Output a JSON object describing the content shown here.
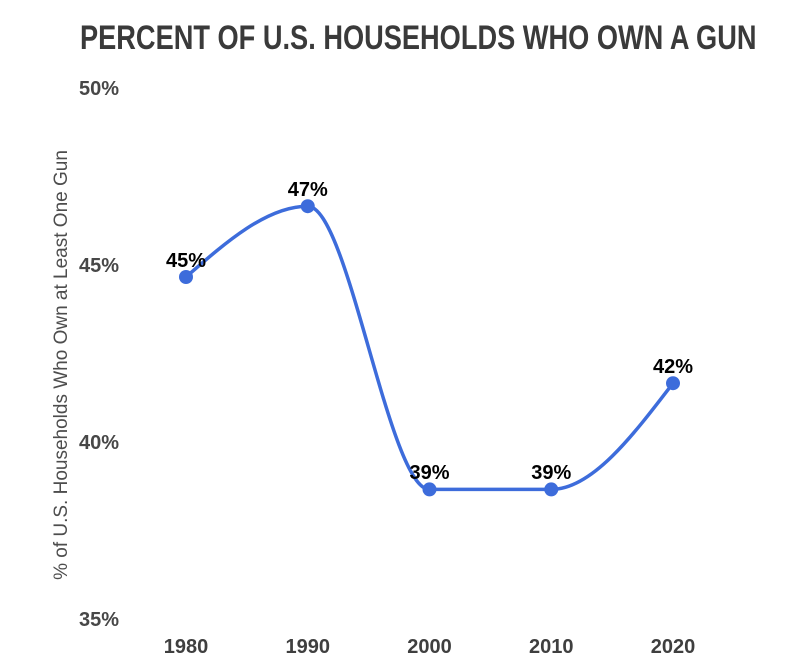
{
  "chart_data": {
    "type": "line",
    "title": "PERCENT OF U.S. HOUSEHOLDS WHO OWN A GUN",
    "xlabel": "",
    "ylabel": "% of U.S. Households Who Own at Least One Gun",
    "x": [
      1980,
      1990,
      2000,
      2010,
      2020
    ],
    "values": [
      45,
      47,
      39,
      39,
      42
    ],
    "point_labels": [
      "45%",
      "47%",
      "39%",
      "39%",
      "42%"
    ],
    "xtick_labels": [
      "1980",
      "1990",
      "2000",
      "2010",
      "2020"
    ],
    "ytick_values": [
      50,
      45,
      40,
      35
    ],
    "ytick_labels": [
      "50%",
      "45%",
      "40%",
      "35%"
    ],
    "ylim": [
      35,
      50
    ],
    "xlim": [
      1980,
      2020
    ],
    "grid": false,
    "legend": "none",
    "line_style": "smooth-monotone",
    "colors": {
      "line": "#3d6cdb",
      "marker": "#3d6cdb",
      "point_label": "#000000",
      "title": "#3a3a3a",
      "axis_text": "#474747",
      "background": "#ffffff"
    }
  }
}
